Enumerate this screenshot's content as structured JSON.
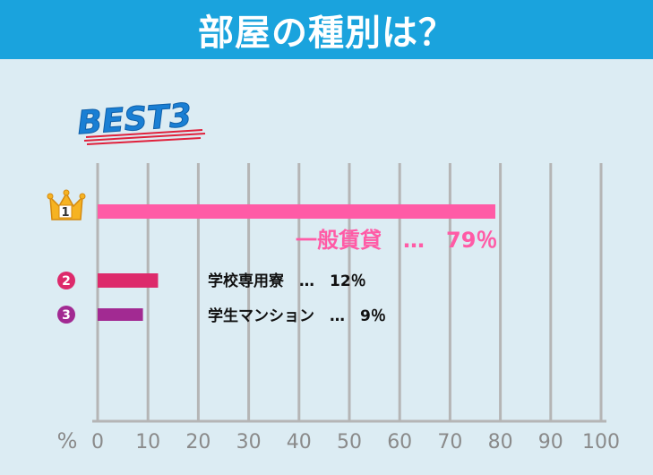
{
  "header": {
    "title": "部屋の種別は？"
  },
  "badge": {
    "text": "BEST3"
  },
  "colors": {
    "header_bg": "#1aa3dd",
    "panel_bg": "#dcecf3",
    "grid": "#b5b5b5",
    "tick_text": "#8a8a8a",
    "rank1": "#ff5ba6",
    "rank2": "#dd2a6b",
    "rank3": "#a22a92",
    "badge_text": "#1a7fd4",
    "badge_underline": "#e0203b",
    "crown": "#f6b322"
  },
  "chart_data": {
    "type": "bar",
    "orientation": "horizontal",
    "title": "部屋の種別は？",
    "xlabel": "%",
    "xlim": [
      0,
      100
    ],
    "x_ticks": [
      "0",
      "10",
      "20",
      "30",
      "40",
      "50",
      "60",
      "70",
      "80",
      "90",
      "100"
    ],
    "categories": [
      "一般賃貸",
      "学校専用寮",
      "学生マンション"
    ],
    "values": [
      79,
      12,
      9
    ],
    "labels": [
      "一般賃貸　…　79％",
      "学校専用寮　…　12％",
      "学生マンション　…　9％"
    ],
    "rank_marks": [
      "1",
      "2",
      "3"
    ],
    "grid": true
  }
}
